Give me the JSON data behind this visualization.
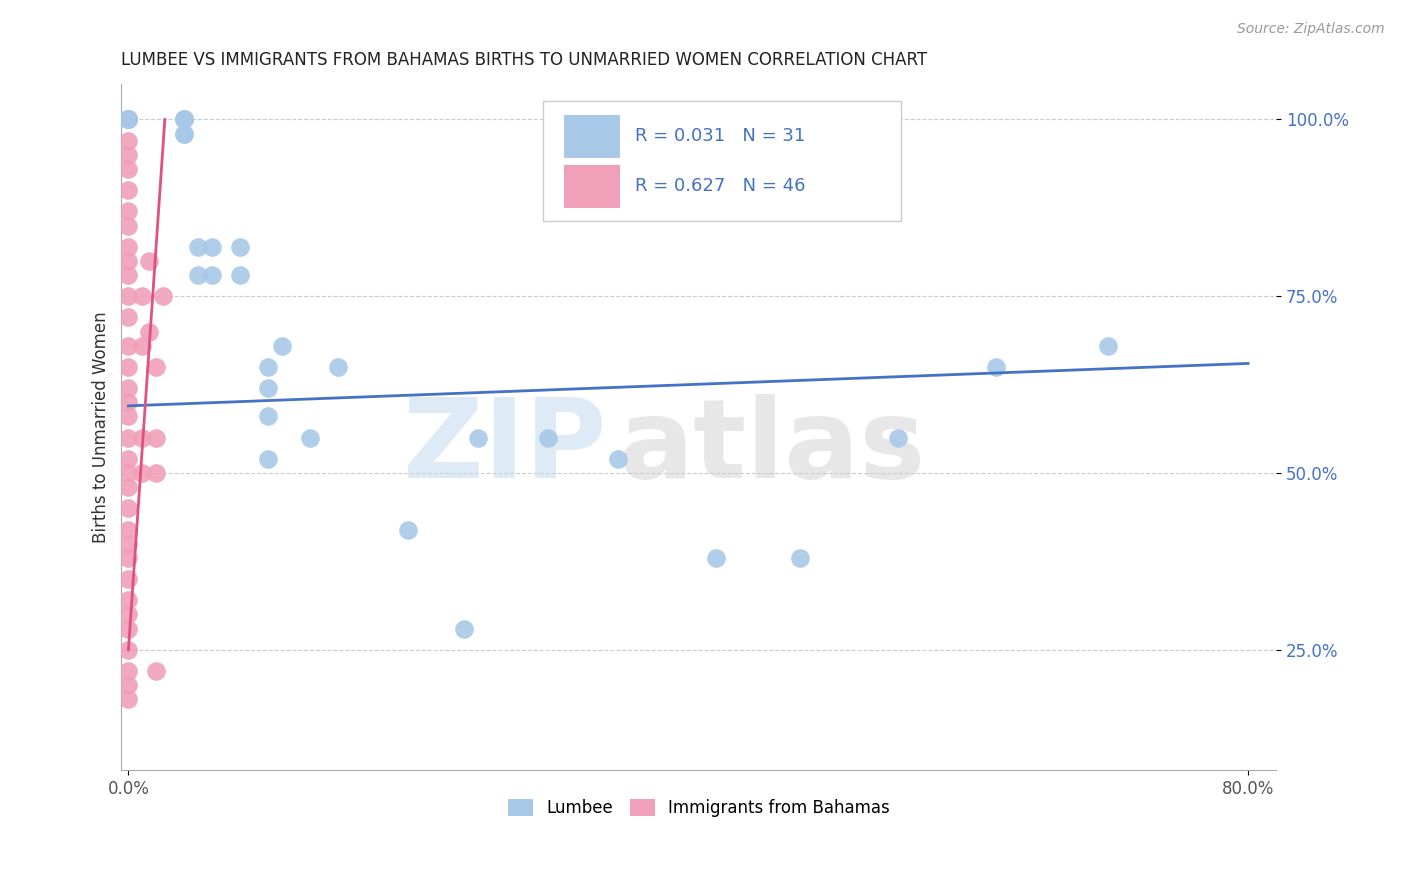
{
  "title": "LUMBEE VS IMMIGRANTS FROM BAHAMAS BIRTHS TO UNMARRIED WOMEN CORRELATION CHART",
  "source": "Source: ZipAtlas.com",
  "ylabel": "Births to Unmarried Women",
  "legend_lumbee_label": "Lumbee",
  "legend_bahamas_label": "Immigrants from Bahamas",
  "blue_color": "#a8c8e8",
  "pink_color": "#f0a0b8",
  "blue_line_color": "#4472c4",
  "pink_line_color": "#e05080",
  "lumbee_x": [
    0.0,
    0.0,
    0.0,
    0.04,
    0.04,
    0.04,
    0.04,
    0.04,
    0.05,
    0.05,
    0.06,
    0.06,
    0.08,
    0.08,
    0.1,
    0.1,
    0.1,
    0.1,
    0.11,
    0.13,
    0.15,
    0.2,
    0.24,
    0.25,
    0.3,
    0.35,
    0.42,
    0.48,
    0.55,
    0.62,
    0.7
  ],
  "lumbee_y": [
    1.0,
    1.0,
    1.0,
    1.0,
    1.0,
    1.0,
    0.98,
    0.98,
    0.82,
    0.78,
    0.82,
    0.78,
    0.82,
    0.78,
    0.65,
    0.62,
    0.58,
    0.52,
    0.68,
    0.55,
    0.65,
    0.42,
    0.28,
    0.55,
    0.55,
    0.52,
    0.38,
    0.38,
    0.55,
    0.65,
    0.68
  ],
  "bahamas_x": [
    0.0,
    0.0,
    0.0,
    0.0,
    0.0,
    0.0,
    0.0,
    0.0,
    0.0,
    0.0,
    0.0,
    0.0,
    0.0,
    0.0,
    0.0,
    0.0,
    0.0,
    0.0,
    0.0,
    0.0,
    0.0,
    0.0,
    0.0,
    0.0,
    0.0,
    0.0,
    0.0,
    0.0,
    0.0,
    0.0,
    0.0,
    0.0,
    0.0,
    0.0,
    0.0,
    0.01,
    0.01,
    0.01,
    0.01,
    0.015,
    0.015,
    0.02,
    0.02,
    0.02,
    0.02,
    0.025
  ],
  "bahamas_y": [
    1.0,
    1.0,
    1.0,
    0.97,
    0.95,
    0.93,
    0.9,
    0.87,
    0.85,
    0.82,
    0.8,
    0.78,
    0.75,
    0.72,
    0.68,
    0.65,
    0.62,
    0.6,
    0.58,
    0.55,
    0.52,
    0.5,
    0.48,
    0.45,
    0.42,
    0.4,
    0.38,
    0.35,
    0.32,
    0.3,
    0.28,
    0.25,
    0.22,
    0.2,
    0.18,
    0.75,
    0.68,
    0.55,
    0.5,
    0.8,
    0.7,
    0.65,
    0.55,
    0.5,
    0.22,
    0.75
  ],
  "xmin": 0.0,
  "xmax": 0.8,
  "ymin": 0.0,
  "ymax": 1.0,
  "blue_line_x": [
    0.0,
    0.8
  ],
  "blue_line_y": [
    0.595,
    0.655
  ],
  "pink_line_x": [
    0.0,
    0.026
  ],
  "pink_line_y": [
    0.25,
    1.0
  ]
}
